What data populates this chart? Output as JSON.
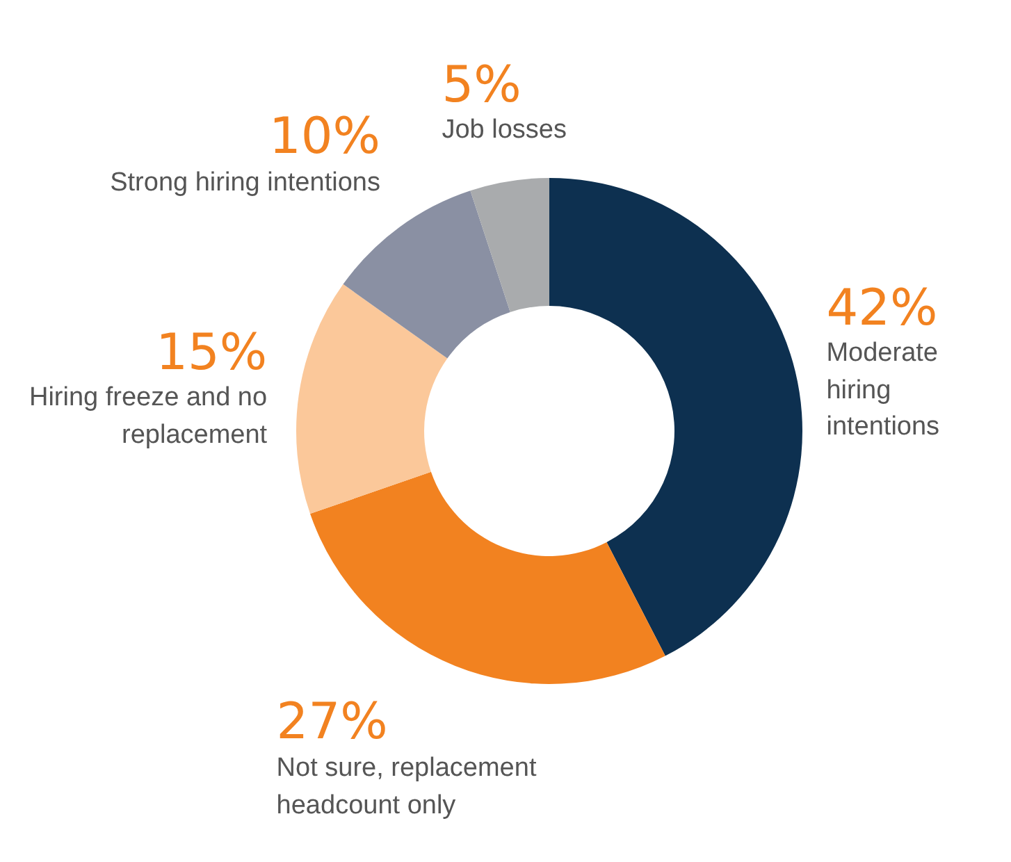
{
  "chart_data": {
    "type": "donut",
    "categories": [
      "Moderate hiring intentions",
      "Not sure, replacement headcount only",
      "Hiring freeze and no replacement",
      "Strong hiring intentions",
      "Job losses"
    ],
    "values": [
      42,
      27,
      15,
      10,
      5
    ],
    "value_labels": [
      "42%",
      "27%",
      "15%",
      "10%",
      "5%"
    ],
    "colors": [
      "#0d3050",
      "#f28220",
      "#fbc89a",
      "#8a90a3",
      "#a9abad"
    ],
    "legend": false
  }
}
